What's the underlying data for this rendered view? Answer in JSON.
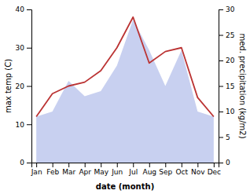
{
  "chart_data": {
    "type": "line",
    "xlabel": "date (month)",
    "ylabel": "max temp (C)",
    "y2label": "med. precipitation (kg/m2)",
    "categories": [
      "Jan",
      "Feb",
      "Mar",
      "Apr",
      "May",
      "Jun",
      "Jul",
      "Aug",
      "Sep",
      "Oct",
      "Nov",
      "Dec"
    ],
    "series": [
      {
        "type": "area",
        "axis": "y2",
        "color": "#c8d0f0",
        "values": [
          9,
          10,
          16,
          13,
          14,
          19,
          28,
          22,
          15,
          22,
          10,
          9
        ]
      },
      {
        "type": "line",
        "color": "#bb3333",
        "values": [
          12,
          18,
          20,
          21,
          24,
          30,
          38,
          26,
          29,
          30,
          17,
          12
        ]
      }
    ],
    "ylim": [
      0,
      40
    ],
    "yticks": [
      0,
      10,
      20,
      30,
      40
    ],
    "y2lim": [
      0,
      30
    ],
    "y2ticks": [
      0,
      5,
      10,
      15,
      20,
      25,
      30
    ],
    "grid": false
  }
}
